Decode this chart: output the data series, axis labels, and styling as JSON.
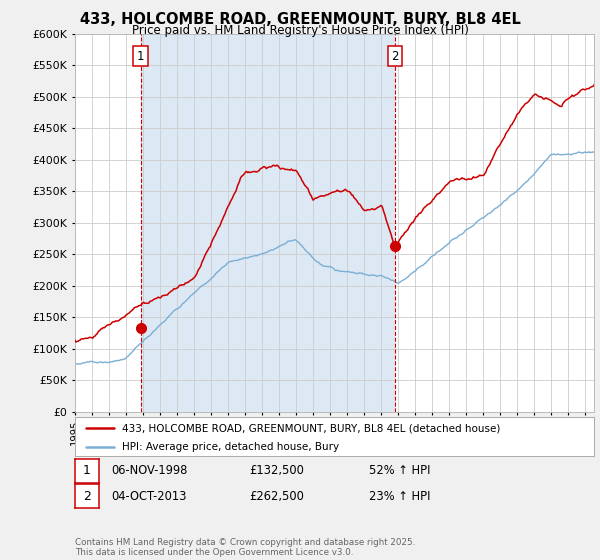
{
  "title": "433, HOLCOMBE ROAD, GREENMOUNT, BURY, BL8 4EL",
  "subtitle": "Price paid vs. HM Land Registry's House Price Index (HPI)",
  "ylim": [
    0,
    600000
  ],
  "yticks": [
    0,
    50000,
    100000,
    150000,
    200000,
    250000,
    300000,
    350000,
    400000,
    450000,
    500000,
    550000,
    600000
  ],
  "xlim_start": 1995.0,
  "xlim_end": 2025.5,
  "marker1_x": 1998.85,
  "marker1_y": 132500,
  "marker2_x": 2013.78,
  "marker2_y": 262500,
  "vline1_x": 1998.85,
  "vline2_x": 2013.78,
  "legend_line1": "433, HOLCOMBE ROAD, GREENMOUNT, BURY, BL8 4EL (detached house)",
  "legend_line2": "HPI: Average price, detached house, Bury",
  "annot1_box": "1",
  "annot1_date": "06-NOV-1998",
  "annot1_price": "£132,500",
  "annot1_hpi": "52% ↑ HPI",
  "annot2_box": "2",
  "annot2_date": "04-OCT-2013",
  "annot2_price": "£262,500",
  "annot2_hpi": "23% ↑ HPI",
  "footer": "Contains HM Land Registry data © Crown copyright and database right 2025.\nThis data is licensed under the Open Government Licence v3.0.",
  "line_color_red": "#cc0000",
  "line_color_blue": "#7bafd4",
  "shade_color": "#dde8f5",
  "bg_color": "#f0f0f0",
  "plot_bg": "#ffffff",
  "grid_color": "#cccccc"
}
